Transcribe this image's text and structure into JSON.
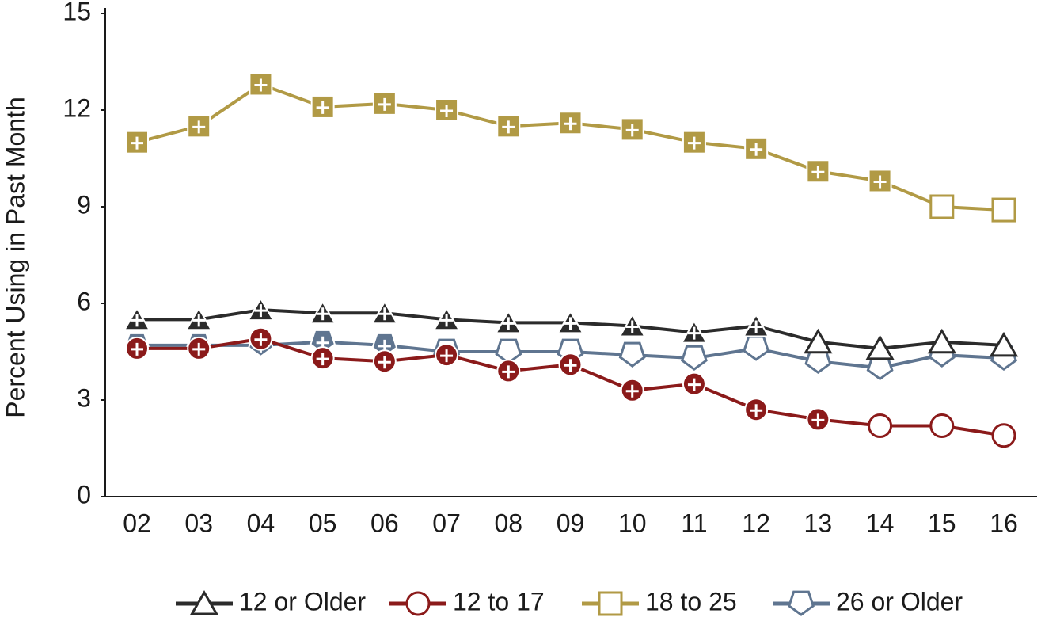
{
  "chart_data": {
    "type": "line",
    "y_label": "Percent Using in Past Month",
    "categories": [
      "02",
      "03",
      "04",
      "05",
      "06",
      "07",
      "08",
      "09",
      "10",
      "11",
      "12",
      "13",
      "14",
      "15",
      "16"
    ],
    "ylim": [
      0,
      15
    ],
    "yticks": [
      0,
      3,
      6,
      9,
      12,
      15
    ],
    "grid": false,
    "legend": "bottom",
    "series": [
      {
        "name": "12 or Older",
        "color": "#2b2b2b",
        "marker": "triangle",
        "values": [
          5.5,
          5.5,
          5.8,
          5.7,
          5.7,
          5.5,
          5.4,
          5.4,
          5.3,
          5.1,
          5.3,
          4.8,
          4.6,
          4.8,
          4.7
        ],
        "filled": [
          true,
          true,
          true,
          true,
          true,
          true,
          true,
          true,
          true,
          true,
          true,
          false,
          false,
          false,
          false
        ]
      },
      {
        "name": "12 to 17",
        "color": "#8b1a1a",
        "marker": "circle",
        "values": [
          4.6,
          4.6,
          4.9,
          4.3,
          4.2,
          4.4,
          3.9,
          4.1,
          3.3,
          3.5,
          2.7,
          2.4,
          2.2,
          2.2,
          1.9
        ],
        "filled": [
          true,
          true,
          true,
          true,
          true,
          true,
          true,
          true,
          true,
          true,
          true,
          true,
          false,
          false,
          false
        ]
      },
      {
        "name": "18 to 25",
        "color": "#b19a45",
        "marker": "square",
        "values": [
          11.0,
          11.5,
          12.8,
          12.1,
          12.2,
          12.0,
          11.5,
          11.6,
          11.4,
          11.0,
          10.8,
          10.1,
          9.8,
          9.0,
          8.9
        ],
        "filled": [
          true,
          true,
          true,
          true,
          true,
          true,
          true,
          true,
          true,
          true,
          true,
          true,
          true,
          false,
          false
        ]
      },
      {
        "name": "26 or Older",
        "color": "#5f7590",
        "marker": "pentagon",
        "values": [
          4.7,
          4.7,
          4.7,
          4.8,
          4.7,
          4.5,
          4.5,
          4.5,
          4.4,
          4.3,
          4.6,
          4.2,
          4.0,
          4.4,
          4.3
        ],
        "filled": [
          true,
          true,
          true,
          true,
          true,
          false,
          false,
          false,
          false,
          false,
          false,
          false,
          false,
          false,
          false
        ]
      }
    ]
  }
}
